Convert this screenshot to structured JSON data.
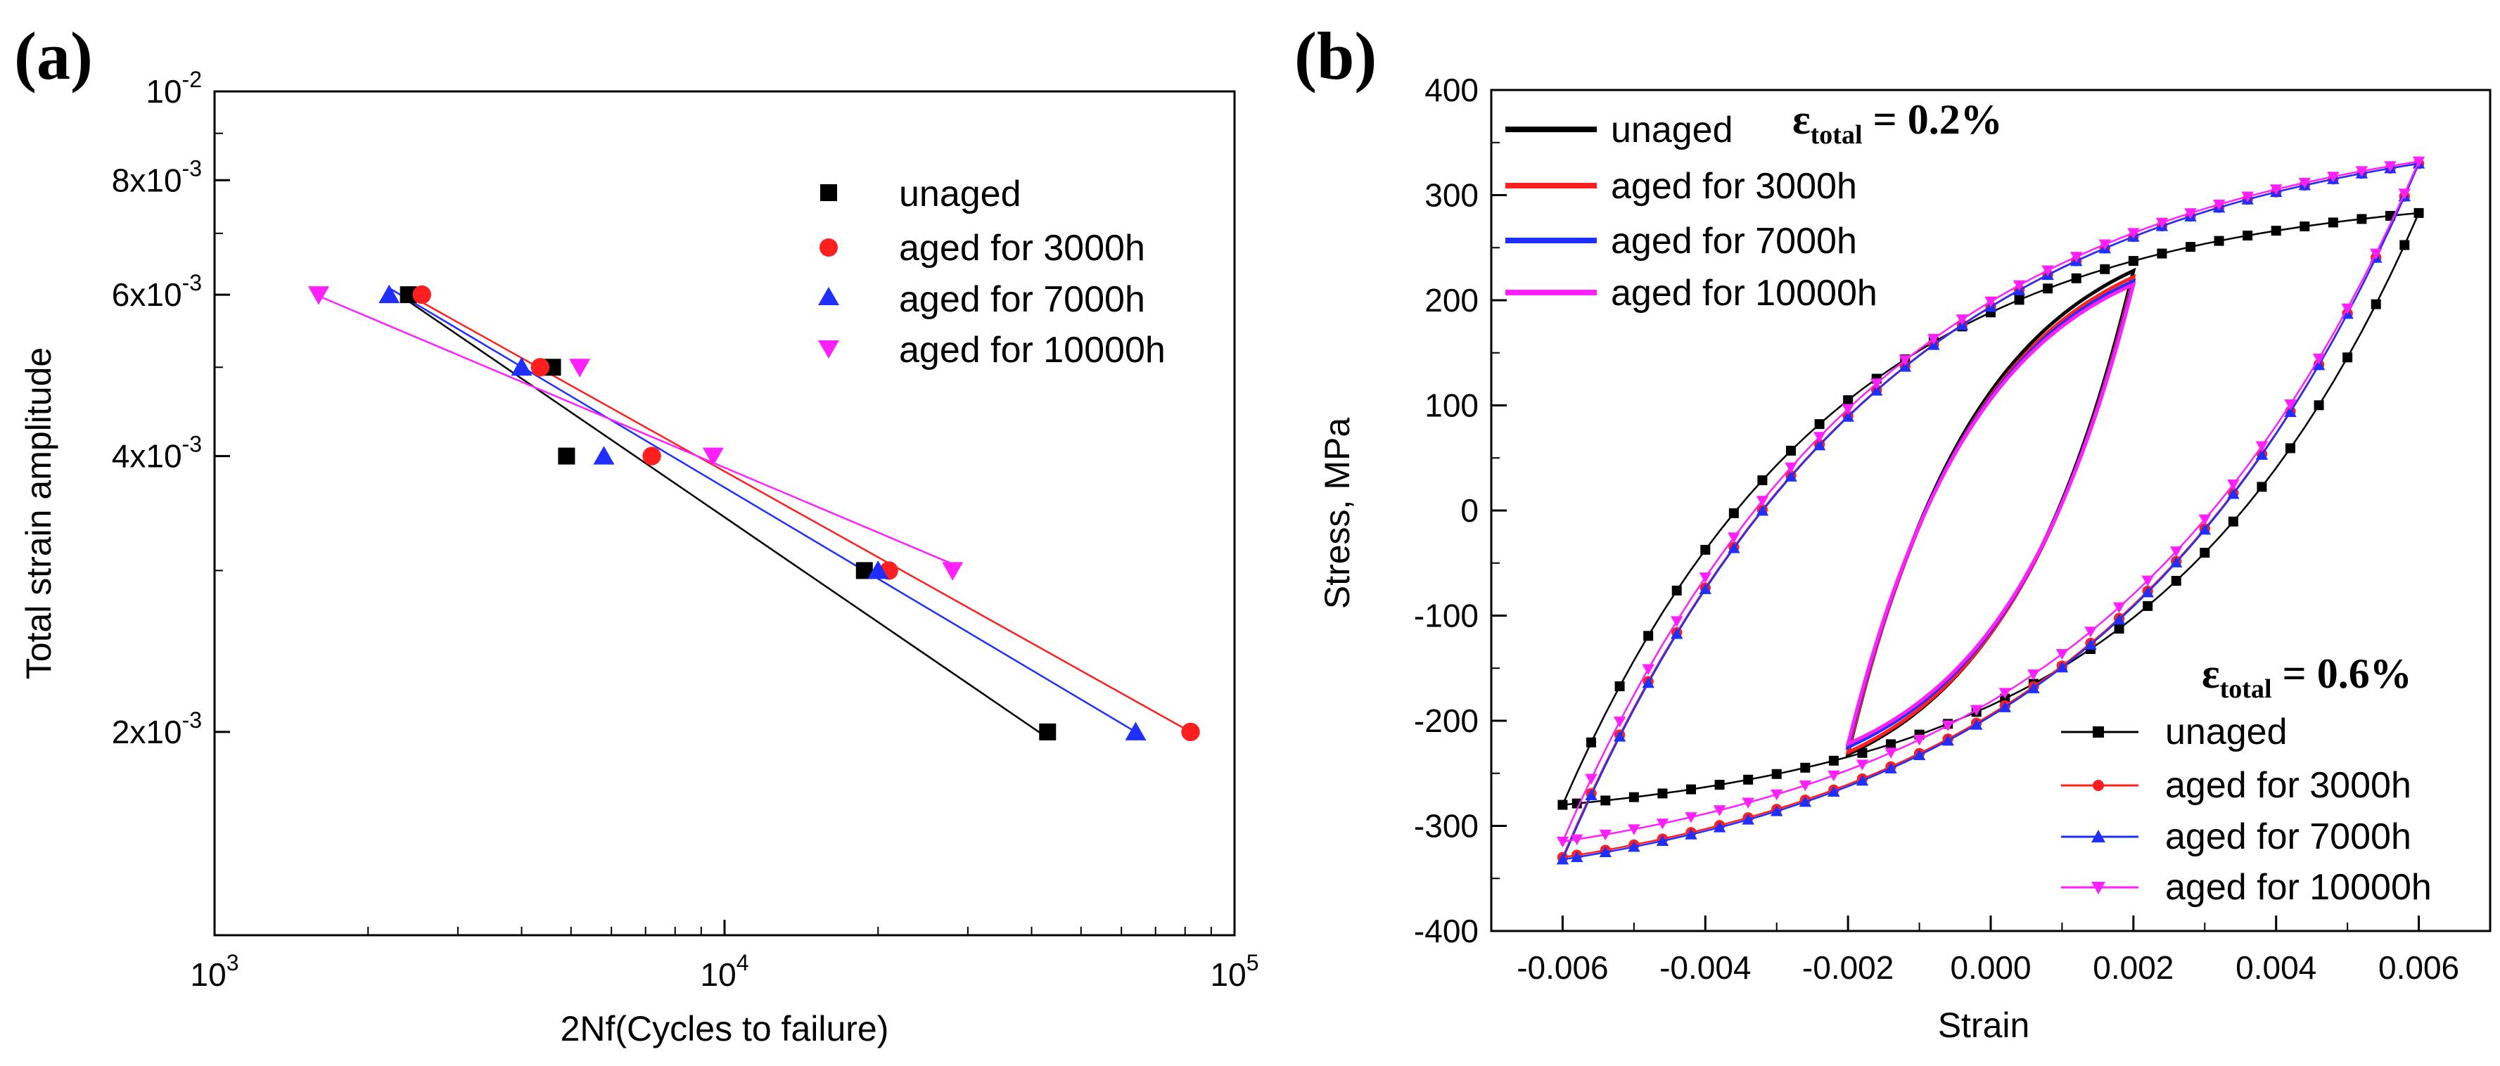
{
  "colors": {
    "unaged": "#000000",
    "aged_3000h": "#ff1f1f",
    "aged_7000h": "#1f2fff",
    "aged_10000h": "#ff1fff"
  },
  "chart_data": [
    {
      "panel": "(a)",
      "type": "scatter",
      "xscale": "log",
      "yscale": "log",
      "xlabel": "2Nf(Cycles to failure)",
      "ylabel": "Total strain amplitude",
      "xlim": [
        1000,
        100000
      ],
      "ylim": [
        0.0012,
        0.01
      ],
      "xticks": [
        {
          "value": 1000,
          "base": "10",
          "exp": "3"
        },
        {
          "value": 10000,
          "base": "10",
          "exp": "4"
        },
        {
          "value": 100000,
          "base": "10",
          "exp": "5"
        }
      ],
      "yticks": [
        {
          "value": 0.002,
          "base": "2x10",
          "exp": "-3"
        },
        {
          "value": 0.004,
          "base": "4x10",
          "exp": "-3"
        },
        {
          "value": 0.006,
          "base": "6x10",
          "exp": "-3"
        },
        {
          "value": 0.008,
          "base": "8x10",
          "exp": "-3"
        },
        {
          "value": 0.01,
          "base": "10",
          "exp": "-2"
        }
      ],
      "legend_position": "top-right",
      "series": [
        {
          "name": "unaged",
          "color_key": "unaged",
          "marker": "square",
          "points": [
            [
              2400,
              0.006
            ],
            [
              4600,
              0.005
            ],
            [
              4900,
              0.004
            ],
            [
              18800,
              0.003
            ],
            [
              43000,
              0.002
            ]
          ],
          "fit": [
            [
              2350,
              0.00595
            ],
            [
              43000,
              0.00197
            ]
          ]
        },
        {
          "name": "aged for 3000h",
          "color_key": "aged_3000h",
          "marker": "circle",
          "points": [
            [
              2550,
              0.006
            ],
            [
              4350,
              0.005
            ],
            [
              7200,
              0.004
            ],
            [
              21000,
              0.003
            ],
            [
              82000,
              0.002
            ]
          ],
          "fit": [
            [
              2400,
              0.006
            ],
            [
              82000,
              0.002
            ]
          ]
        },
        {
          "name": "aged for 7000h",
          "color_key": "aged_7000h",
          "marker": "triangle-up",
          "points": [
            [
              2200,
              0.006
            ],
            [
              4000,
              0.005
            ],
            [
              5800,
              0.004
            ],
            [
              20000,
              0.003
            ],
            [
              64000,
              0.002
            ]
          ],
          "fit": [
            [
              2200,
              0.0061
            ],
            [
              64000,
              0.002
            ]
          ]
        },
        {
          "name": "aged for 10000h",
          "color_key": "aged_10000h",
          "marker": "triangle-down",
          "points": [
            [
              1600,
              0.006
            ],
            [
              5200,
              0.005
            ],
            [
              9500,
              0.004
            ],
            [
              28000,
              0.003
            ]
          ],
          "fit": [
            [
              1600,
              0.00598
            ],
            [
              28000,
              0.00305
            ]
          ]
        }
      ]
    },
    {
      "panel": "(b)",
      "type": "line",
      "xlabel": "Strain",
      "ylabel": "Stress, MPa",
      "xlim": [
        -0.007,
        0.007
      ],
      "ylim": [
        -400,
        400
      ],
      "xticks": [
        "-0.006",
        "-0.004",
        "-0.002",
        "0.000",
        "0.002",
        "0.004",
        "0.006"
      ],
      "yticks": [
        "-400",
        "-300",
        "-200",
        "-100",
        "0",
        "100",
        "200",
        "300",
        "400"
      ],
      "annotations": [
        {
          "symbol": "ε",
          "subscript": "total",
          "text": " = 0.2%"
        },
        {
          "symbol": "ε",
          "subscript": "total",
          "text": " = 0.6%"
        }
      ],
      "legend_top": {
        "position": "top-left",
        "entries": [
          "unaged",
          "aged for 3000h",
          "aged for 7000h",
          "aged for 10000h"
        ]
      },
      "legend_bottom": {
        "position": "bottom-right",
        "entries": [
          "unaged",
          "aged for 3000h",
          "aged for 7000h",
          "aged for 10000h"
        ]
      },
      "loops_0_2pct": [
        {
          "name": "unaged",
          "color_key": "unaged",
          "strain_amp": 0.002,
          "peak_stress": 228,
          "min_stress": -232
        },
        {
          "name": "aged for 3000h",
          "color_key": "aged_3000h",
          "strain_amp": 0.002,
          "peak_stress": 222,
          "min_stress": -230
        },
        {
          "name": "aged for 7000h",
          "color_key": "aged_7000h",
          "strain_amp": 0.002,
          "peak_stress": 218,
          "min_stress": -225
        },
        {
          "name": "aged for 10000h",
          "color_key": "aged_10000h",
          "strain_amp": 0.002,
          "peak_stress": 215,
          "min_stress": -222
        }
      ],
      "loops_0_6pct": [
        {
          "name": "unaged",
          "color_key": "unaged",
          "marker": "square",
          "strain_amp": 0.006,
          "peak_stress": 283,
          "min_stress": -280
        },
        {
          "name": "aged for 3000h",
          "color_key": "aged_3000h",
          "marker": "circle",
          "strain_amp": 0.006,
          "peak_stress": 330,
          "min_stress": -330
        },
        {
          "name": "aged for 7000h",
          "color_key": "aged_7000h",
          "marker": "triangle-up",
          "strain_amp": 0.006,
          "peak_stress": 330,
          "min_stress": -332
        },
        {
          "name": "aged for 10000h",
          "color_key": "aged_10000h",
          "marker": "triangle-down",
          "strain_amp": 0.006,
          "peak_stress": 332,
          "min_stress": -315
        }
      ]
    }
  ]
}
